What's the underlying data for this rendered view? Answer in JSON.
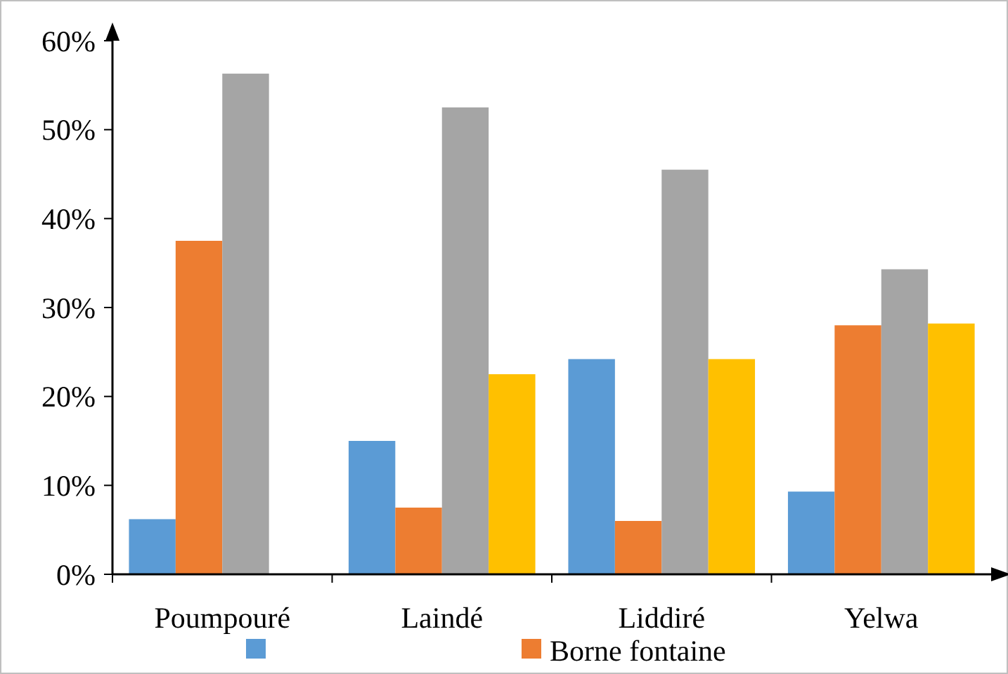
{
  "chart_data": {
    "type": "bar",
    "categories": [
      "Poumpouré",
      "Laindé",
      "Liddiré",
      "Yelwa"
    ],
    "series": [
      {
        "color": "#5b9bd5",
        "values": [
          6.2,
          15,
          24.2,
          9.3
        ]
      },
      {
        "name": "Borne fontaine",
        "color": "#ed7d31",
        "values": [
          37.5,
          7.5,
          6,
          28
        ]
      },
      {
        "color": "#a5a5a5",
        "values": [
          56.3,
          52.5,
          45.5,
          34.3
        ]
      },
      {
        "color": "#ffc000",
        "values": [
          null,
          22.5,
          24.2,
          28.2
        ]
      }
    ],
    "ylim": [
      0,
      60
    ],
    "yticks": [
      {
        "value": 0,
        "label": "0%"
      },
      {
        "value": 10,
        "label": "10%"
      },
      {
        "value": 20,
        "label": "20%"
      },
      {
        "value": 30,
        "label": "30%"
      },
      {
        "value": 40,
        "label": "40%"
      },
      {
        "value": 50,
        "label": "50%"
      },
      {
        "value": 60,
        "label": "60%"
      }
    ],
    "grid": false,
    "legend": "bottom"
  }
}
